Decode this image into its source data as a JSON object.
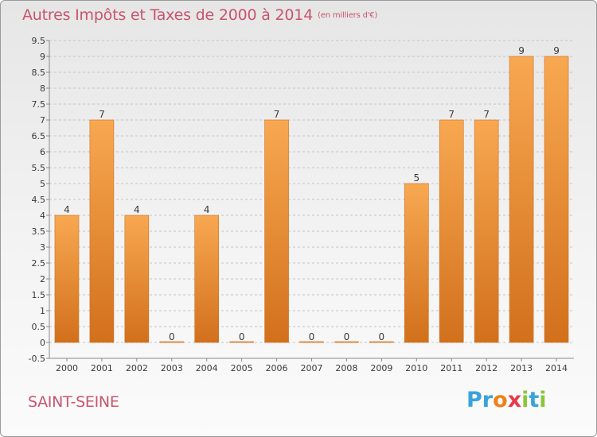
{
  "title": {
    "main": "Autres Impôts et Taxes de 2000 à 2014",
    "unit": "(en milliers d'€)"
  },
  "commune": "SAINT-SEINE",
  "logo": {
    "text": "Proxiti"
  },
  "colors": {
    "bar_top": "#f8a851",
    "bar_bottom": "#d2701c",
    "title": "#c8546e",
    "grid": "#c4c4c4",
    "axis_text": "#3a3a3a"
  },
  "chart_data": {
    "type": "bar",
    "title": "Autres Impôts et Taxes de 2000 à 2014",
    "subtitle": "(en milliers d'€)",
    "xlabel": "",
    "ylabel": "",
    "categories": [
      "2000",
      "2001",
      "2002",
      "2003",
      "2004",
      "2005",
      "2006",
      "2007",
      "2008",
      "2009",
      "2010",
      "2011",
      "2012",
      "2013",
      "2014"
    ],
    "values": [
      4,
      7,
      4,
      0,
      4,
      0,
      7,
      0,
      0,
      0,
      5,
      7,
      7,
      9,
      9
    ],
    "data_labels": [
      "4",
      "7",
      "4",
      "0",
      "4",
      "0",
      "7",
      "0",
      "0",
      "0",
      "5",
      "7",
      "7",
      "9",
      "9"
    ],
    "ylim": [
      -0.5,
      9.5
    ],
    "yticks": [
      "9.5",
      "9",
      "8.5",
      "8",
      "7.5",
      "7",
      "6.5",
      "6",
      "5.5",
      "5",
      "4.5",
      "4",
      "3.5",
      "3",
      "2.5",
      "2",
      "1.5",
      "1",
      "0.5",
      "0",
      "-0.5"
    ],
    "ytick_values": [
      9.5,
      9,
      8.5,
      8,
      7.5,
      7,
      6.5,
      6,
      5.5,
      5,
      4.5,
      4,
      3.5,
      3,
      2.5,
      2,
      1.5,
      1,
      0.5,
      0,
      -0.5
    ],
    "grid": true,
    "legend": "none"
  }
}
